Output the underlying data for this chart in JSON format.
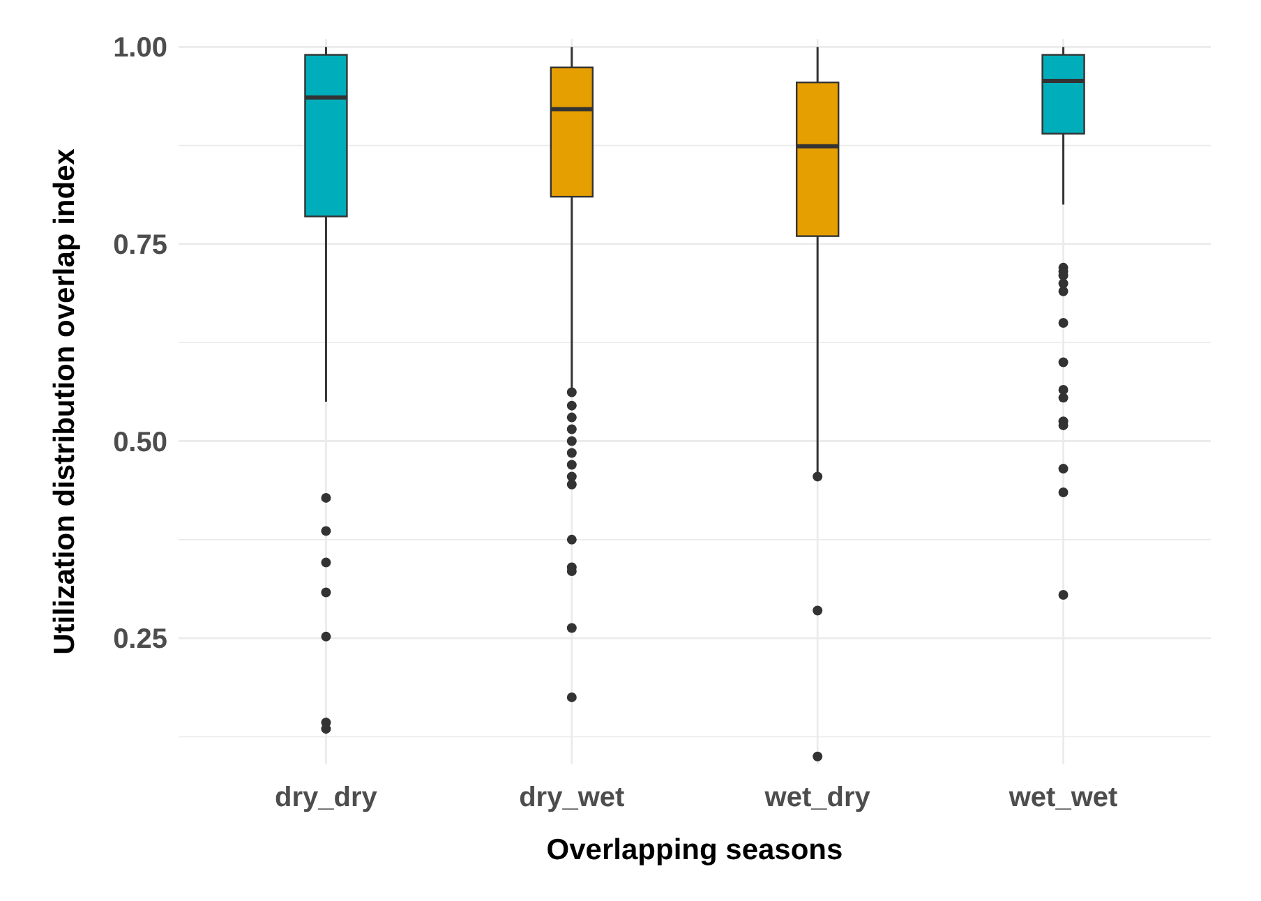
{
  "chart_data": {
    "type": "box",
    "xlabel": "Overlapping seasons",
    "ylabel": "Utilization distribution overlap index",
    "categories": [
      "dry_dry",
      "dry_wet",
      "wet_dry",
      "wet_wet"
    ],
    "colors": [
      "#00adba",
      "#e69f00",
      "#e69f00",
      "#00adba"
    ],
    "boxes": [
      {
        "low": 0.55,
        "q1": 0.785,
        "median": 0.936,
        "q3": 0.99,
        "high": 1.0,
        "outliers": [
          0.428,
          0.386,
          0.346,
          0.308,
          0.252,
          0.143,
          0.135
        ]
      },
      {
        "low": 0.566,
        "q1": 0.81,
        "median": 0.921,
        "q3": 0.974,
        "high": 1.0,
        "outliers": [
          0.562,
          0.545,
          0.53,
          0.515,
          0.5,
          0.485,
          0.47,
          0.455,
          0.445,
          0.375,
          0.34,
          0.335,
          0.263,
          0.175
        ]
      },
      {
        "low": 0.46,
        "q1": 0.76,
        "median": 0.874,
        "q3": 0.955,
        "high": 1.0,
        "outliers": [
          0.455,
          0.285,
          0.1
        ]
      },
      {
        "low": 0.8,
        "q1": 0.89,
        "median": 0.957,
        "q3": 0.99,
        "high": 1.0,
        "outliers": [
          0.72,
          0.715,
          0.71,
          0.7,
          0.69,
          0.65,
          0.6,
          0.565,
          0.555,
          0.525,
          0.52,
          0.465,
          0.435,
          0.305
        ]
      }
    ],
    "ylim": [
      0.09,
      1.01
    ],
    "yticks": [
      {
        "value": 0.125,
        "label": null
      },
      {
        "value": 0.25,
        "label": "0.25"
      },
      {
        "value": 0.375,
        "label": null
      },
      {
        "value": 0.5,
        "label": "0.50"
      },
      {
        "value": 0.625,
        "label": null
      },
      {
        "value": 0.75,
        "label": "0.75"
      },
      {
        "value": 0.875,
        "label": null
      },
      {
        "value": 1.0,
        "label": "1.00"
      }
    ],
    "grid": true
  }
}
